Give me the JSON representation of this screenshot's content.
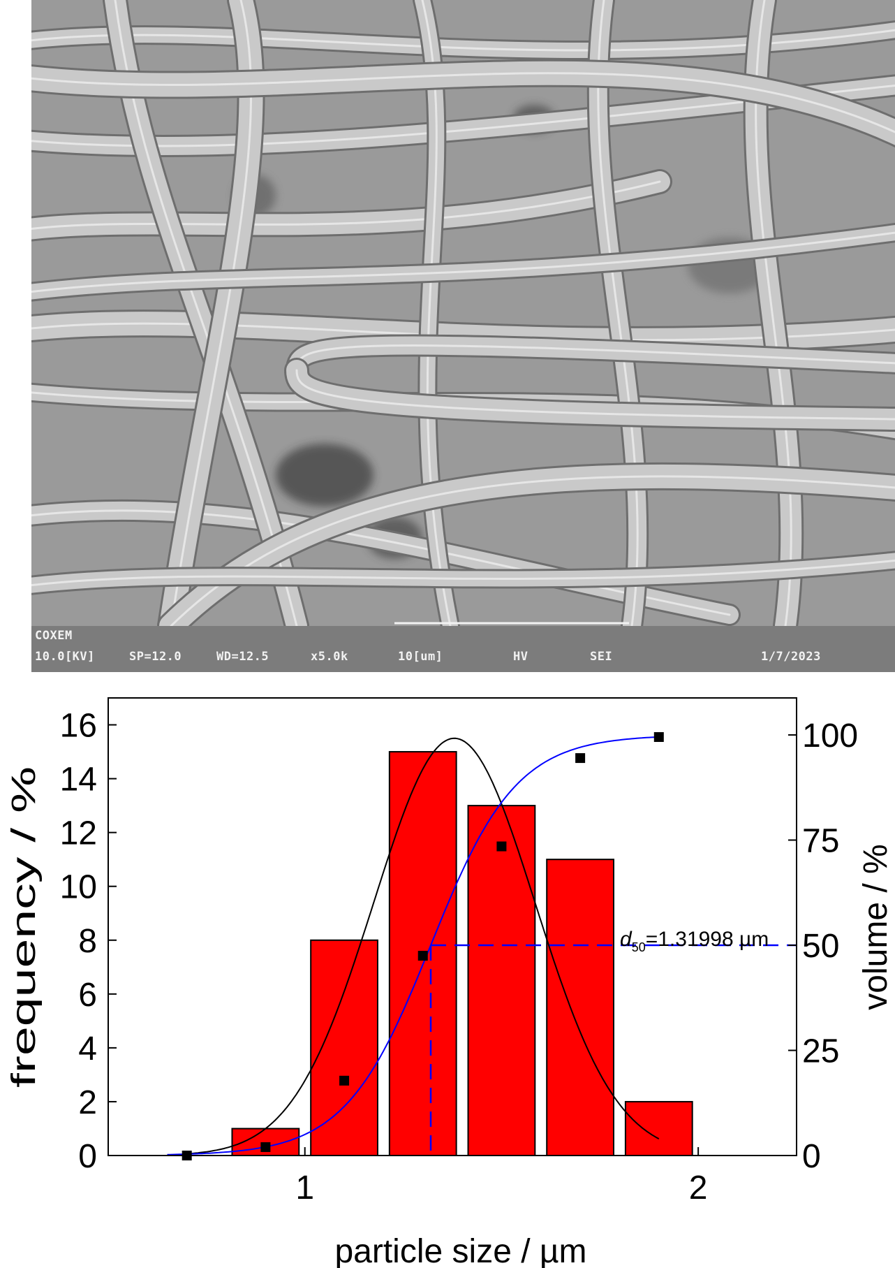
{
  "sem": {
    "brand": "COXEM",
    "voltage": "10.0[KV]",
    "spot": "SP=12.0",
    "wd": "WD=12.5",
    "magnification": "x5.0k",
    "scale_label": "10[um]",
    "vacuum_mode": "HV",
    "detector": "SEI",
    "date": "1/7/2023"
  },
  "chart_data": {
    "type": "bar",
    "xlabel": "particle size / µm",
    "ylabel": "frequency / %",
    "y2label": "volume / %",
    "xlim": [
      0.5,
      2.25
    ],
    "ylim": [
      0,
      17
    ],
    "y2lim": [
      0,
      108.8
    ],
    "xticks": [
      1,
      2
    ],
    "yticks": [
      0,
      2,
      4,
      6,
      8,
      10,
      12,
      14,
      16
    ],
    "y2ticks": [
      0,
      25,
      50,
      75,
      100
    ],
    "bar_width": 0.17,
    "bars": {
      "x": [
        0.9,
        1.1,
        1.3,
        1.5,
        1.7,
        1.9
      ],
      "values": [
        1,
        8,
        15,
        13,
        11,
        2
      ],
      "color": "#ff0000"
    },
    "cumulative_points": {
      "x": [
        0.7,
        0.9,
        1.1,
        1.3,
        1.5,
        1.7,
        1.9
      ],
      "values": [
        0,
        2,
        17.8,
        47.5,
        73.5,
        94.5,
        99.5
      ]
    },
    "normal_fit": {
      "mean": 1.38,
      "sigma": 0.205,
      "peak": 15.5,
      "x_range": [
        0.71,
        1.9
      ],
      "color": "#000000"
    },
    "cumulative_fit": {
      "mean": 1.32,
      "sigma": 0.185,
      "max": 100,
      "x_range": [
        0.65,
        1.9
      ],
      "color": "#0000ff"
    },
    "d50": {
      "label_prefix": "d",
      "label_sub": "50",
      "label_value": "=1.31998 µm",
      "x": 1.31998,
      "y": 50,
      "color": "#0000ff"
    }
  }
}
